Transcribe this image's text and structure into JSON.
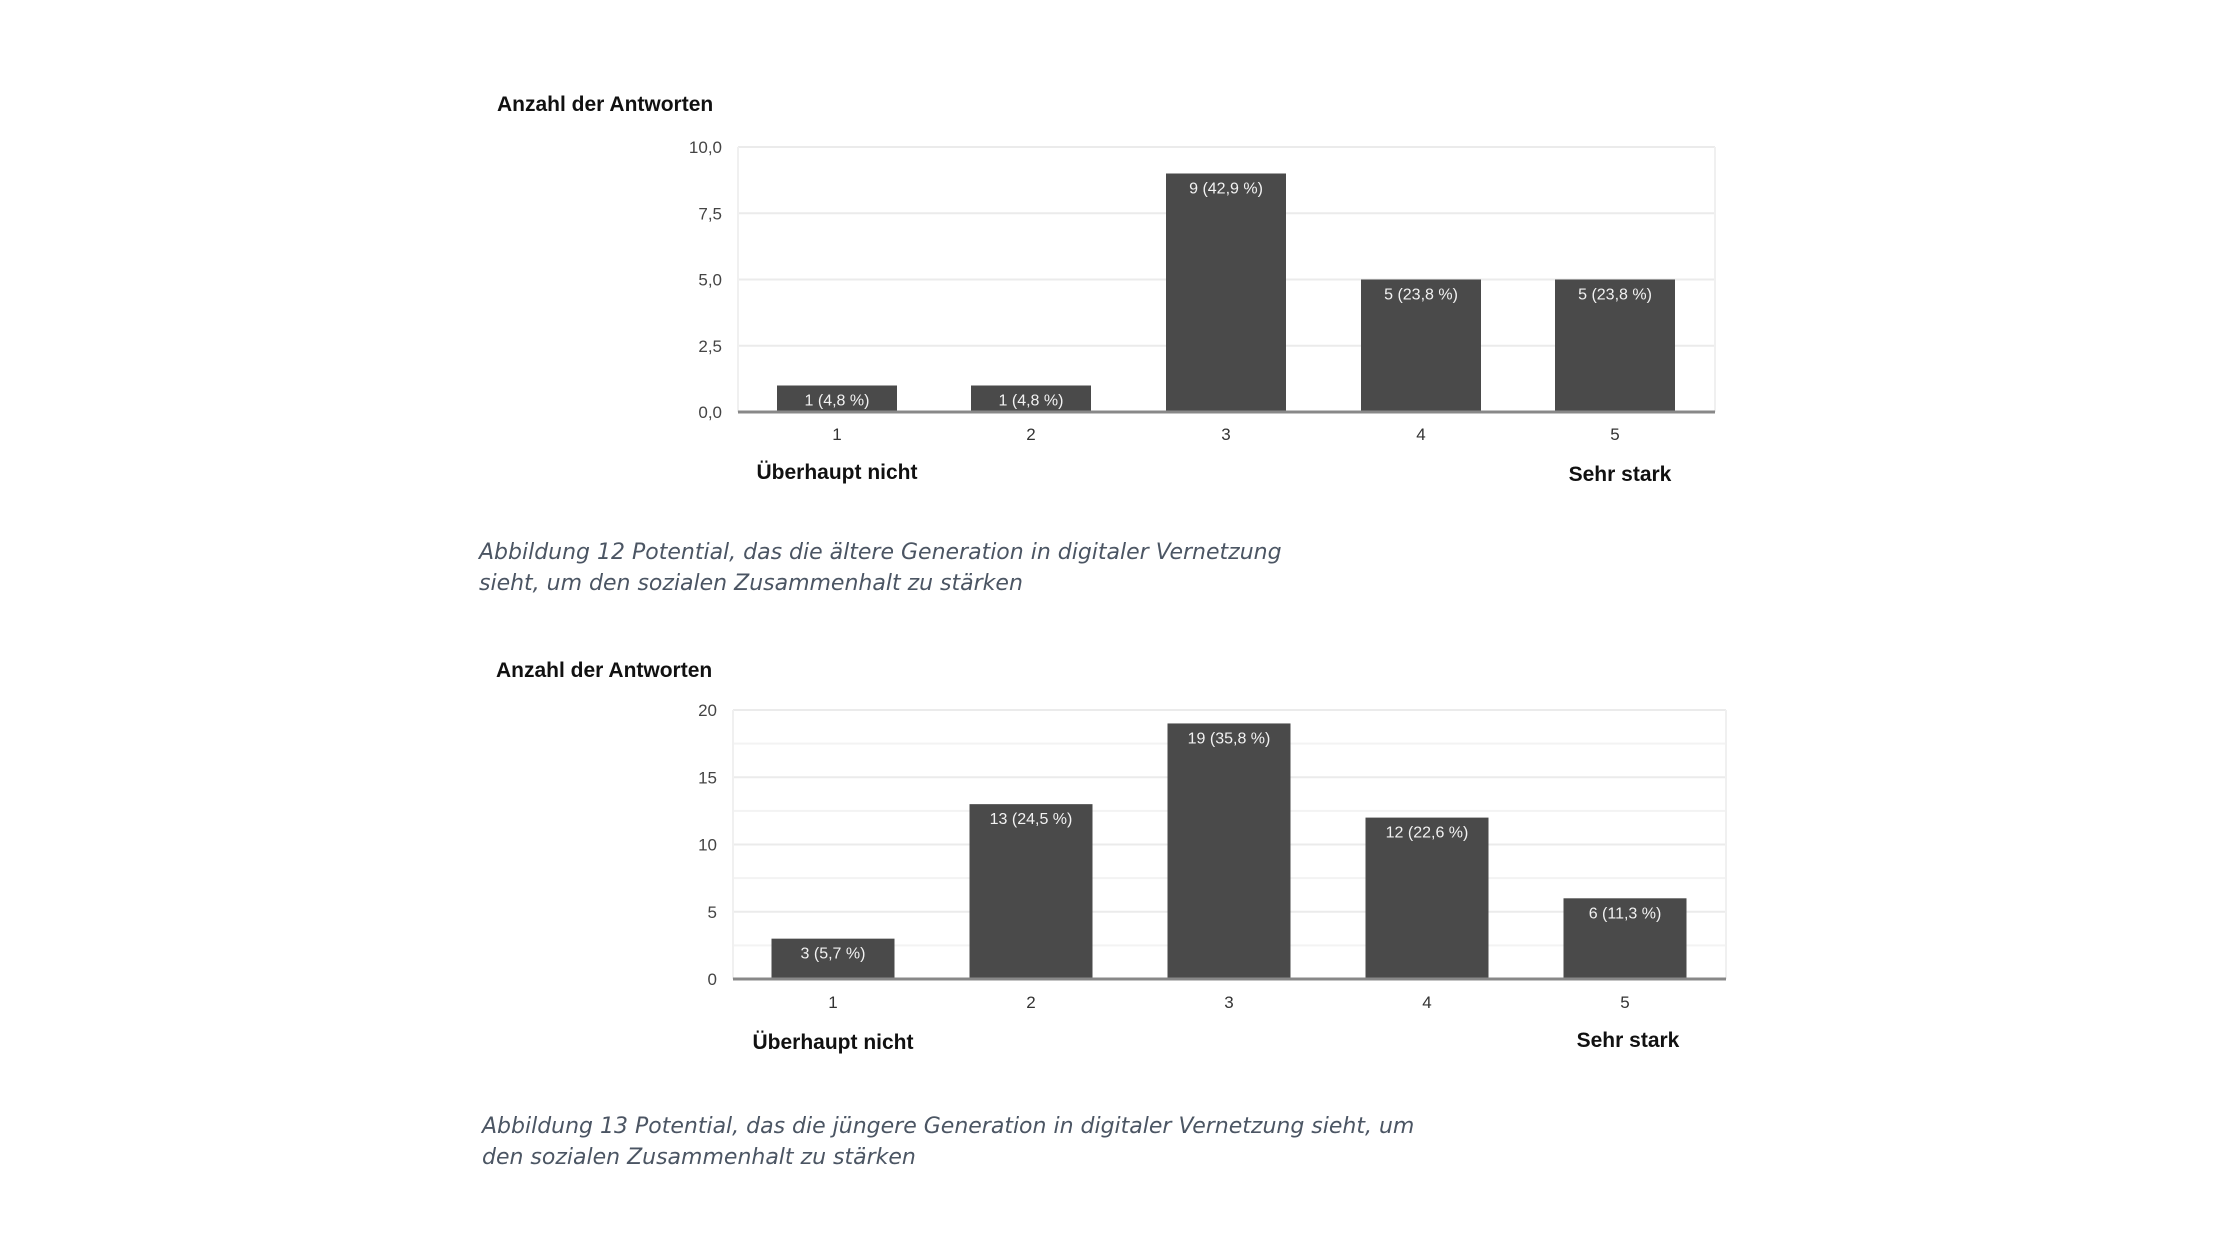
{
  "chart_data": [
    {
      "type": "bar",
      "title": "Anzahl der Antworten",
      "categories": [
        "1",
        "2",
        "3",
        "4",
        "5"
      ],
      "values": [
        1,
        1,
        9,
        5,
        5
      ],
      "data_labels": [
        "1 (4,8 %)",
        "1 (4,8 %)",
        "9 (42,9 %)",
        "5 (23,8 %)",
        "5 (23,8 %)"
      ],
      "yticks": [
        "0,0",
        "2,5",
        "5,0",
        "7,5",
        "10,0"
      ],
      "ytick_values": [
        0,
        2.5,
        5,
        7.5,
        10
      ],
      "ylim": [
        0,
        10
      ],
      "minor_grid": false,
      "scale_low_label": "Überhaupt nicht",
      "scale_high_label": "Sehr stark",
      "caption_lines": [
        "Abbildung 12 Potential, das die ältere Generation in digitaler Vernetzung",
        "sieht, um den sozialen Zusammenhalt zu stärken"
      ],
      "bar_color": "#4a4a4a",
      "grid": true
    },
    {
      "type": "bar",
      "title": "Anzahl der Antworten",
      "categories": [
        "1",
        "2",
        "3",
        "4",
        "5"
      ],
      "values": [
        3,
        13,
        19,
        12,
        6
      ],
      "data_labels": [
        "3 (5,7 %)",
        "13 (24,5 %)",
        "19 (35,8 %)",
        "12 (22,6 %)",
        "6 (11,3 %)"
      ],
      "yticks": [
        "0",
        "5",
        "10",
        "15",
        "20"
      ],
      "ytick_values": [
        0,
        5,
        10,
        15,
        20
      ],
      "ylim": [
        0,
        20
      ],
      "minor_grid": true,
      "scale_low_label": "Überhaupt nicht",
      "scale_high_label": "Sehr stark",
      "caption_lines": [
        "Abbildung 13 Potential, das die jüngere Generation in digitaler Vernetzung sieht, um",
        "den sozialen Zusammenhalt zu stärken"
      ],
      "bar_color": "#4a4a4a",
      "grid": true
    }
  ]
}
